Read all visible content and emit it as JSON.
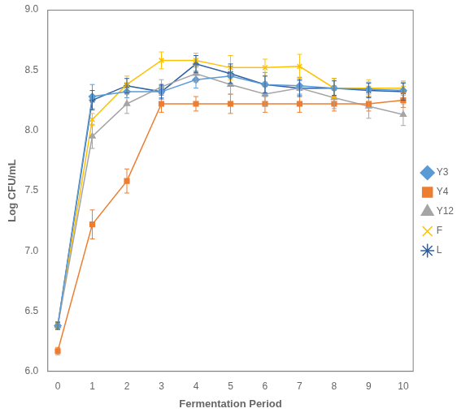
{
  "chart_data": {
    "type": "line",
    "xlabel": "Fermentation Period",
    "ylabel": "Log CFU/mL",
    "x": [
      0,
      1,
      2,
      3,
      4,
      5,
      6,
      7,
      8,
      9,
      10
    ],
    "series": [
      {
        "name": "Y3",
        "color": "#5B9BD5",
        "marker": "diamond",
        "values": [
          6.38,
          8.28,
          8.32,
          8.32,
          8.42,
          8.45,
          8.38,
          8.37,
          8.35,
          8.34,
          8.33
        ],
        "yerr": [
          0.03,
          0.1,
          0.05,
          0.05,
          0.07,
          0.08,
          0.1,
          0.07,
          0.08,
          0.06,
          0.07
        ]
      },
      {
        "name": "Y4",
        "color": "#ED7D31",
        "marker": "square",
        "values": [
          6.17,
          7.22,
          7.58,
          8.22,
          8.22,
          8.22,
          8.22,
          8.22,
          8.22,
          8.22,
          8.25
        ],
        "yerr": [
          0.03,
          0.12,
          0.1,
          0.07,
          0.06,
          0.08,
          0.07,
          0.07,
          0.06,
          0.06,
          0.06
        ]
      },
      {
        "name": "Y12",
        "color": "#A5A5A5",
        "marker": "triangle",
        "values": [
          6.38,
          7.95,
          8.22,
          8.36,
          8.47,
          8.38,
          8.3,
          8.35,
          8.27,
          8.2,
          8.13
        ],
        "yerr": [
          0.03,
          0.1,
          0.08,
          0.06,
          0.07,
          0.08,
          0.1,
          0.06,
          0.09,
          0.1,
          0.09
        ]
      },
      {
        "name": "F",
        "color": "#FFC000",
        "marker": "x",
        "values": [
          6.38,
          8.09,
          8.38,
          8.58,
          8.58,
          8.52,
          8.52,
          8.53,
          8.35,
          8.35,
          8.35
        ],
        "yerr": [
          0.03,
          0.05,
          0.07,
          0.07,
          0.06,
          0.1,
          0.07,
          0.1,
          0.08,
          0.07,
          0.06
        ]
      },
      {
        "name": "L",
        "color": "#2E5FA3",
        "marker": "star",
        "values": [
          6.38,
          8.25,
          8.37,
          8.32,
          8.55,
          8.47,
          8.38,
          8.35,
          8.35,
          8.33,
          8.32
        ],
        "yerr": [
          0.03,
          0.08,
          0.06,
          0.06,
          0.07,
          0.08,
          0.07,
          0.07,
          0.06,
          0.06,
          0.07
        ]
      }
    ],
    "xlim": [
      -0.3,
      10.3
    ],
    "xticks": [
      0,
      1,
      2,
      3,
      4,
      5,
      6,
      7,
      8,
      9,
      10
    ],
    "ylim": [
      6.0,
      9.0
    ],
    "yticks": [
      {
        "value": 6.0,
        "label": "6.0"
      },
      {
        "value": 6.5,
        "label": "6.5"
      },
      {
        "value": 7.0,
        "label": "7.0"
      },
      {
        "value": 7.5,
        "label": "7.5"
      },
      {
        "value": 8.0,
        "label": "8.0"
      },
      {
        "value": 8.5,
        "label": "8.5"
      },
      {
        "value": 9.0,
        "label": "9.0"
      }
    ],
    "grid": false,
    "legend": "right"
  }
}
